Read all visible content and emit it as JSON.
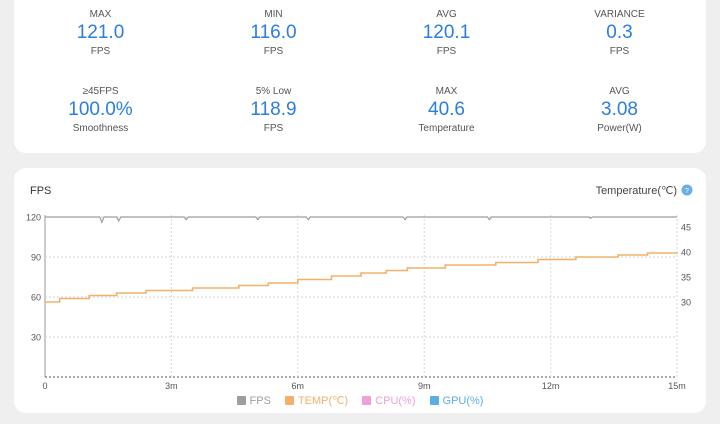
{
  "stats": [
    {
      "label": "MAX",
      "value": "121.0",
      "unit": "FPS"
    },
    {
      "label": "MIN",
      "value": "116.0",
      "unit": "FPS"
    },
    {
      "label": "AVG",
      "value": "120.1",
      "unit": "FPS"
    },
    {
      "label": "VARIANCE",
      "value": "0.3",
      "unit": "FPS"
    },
    {
      "label": "≥45FPS",
      "value": "100.0%",
      "unit": "Smoothness"
    },
    {
      "label": "5% Low",
      "value": "118.9",
      "unit": "FPS"
    },
    {
      "label": "MAX",
      "value": "40.6",
      "unit": "Temperature"
    },
    {
      "label": "AVG",
      "value": "3.08",
      "unit": "Power(W)"
    }
  ],
  "chart": {
    "left_title": "FPS",
    "right_title": "Temperature(℃)",
    "accent": "#2a7de1",
    "colors": {
      "fps": "#9e9e9e",
      "temp": "#f4b06a",
      "cpu": "#f0a0d8",
      "gpu": "#5aaee8"
    },
    "legend": [
      {
        "key": "fps",
        "label": "FPS",
        "color": "#9e9e9e"
      },
      {
        "key": "temp",
        "label": "TEMP(℃)",
        "color": "#f4b06a"
      },
      {
        "key": "cpu",
        "label": "CPU(%)",
        "color": "#f0a0d8"
      },
      {
        "key": "gpu",
        "label": "GPU(%)",
        "color": "#5aaee8"
      }
    ]
  },
  "chart_data": {
    "type": "line",
    "title": "",
    "xlabel": "",
    "ylabel": "FPS",
    "y2label": "Temperature(℃)",
    "x_ticks": [
      {
        "min": 0,
        "label": "0"
      },
      {
        "min": 3,
        "label": "3m"
      },
      {
        "min": 6,
        "label": "6m"
      },
      {
        "min": 9,
        "label": "9m"
      },
      {
        "min": 12,
        "label": "12m"
      },
      {
        "min": 15,
        "label": "15m"
      }
    ],
    "y_ticks": [
      30,
      60,
      90,
      120
    ],
    "y2_ticks": [
      30,
      35,
      40,
      45
    ],
    "xlim": [
      0,
      15
    ],
    "ylim": [
      0,
      120
    ],
    "y2lim": [
      15,
      47
    ],
    "grid": true,
    "legend_position": "bottom",
    "series": [
      {
        "name": "FPS",
        "axis": "left",
        "x": [
          0,
          0.5,
          1.3,
          1.35,
          1.4,
          1.7,
          1.75,
          1.8,
          3.3,
          3.35,
          3.4,
          5.0,
          5.05,
          5.1,
          6.2,
          6.25,
          6.3,
          8.5,
          8.55,
          8.6,
          10.5,
          10.55,
          10.6,
          12.9,
          12.95,
          13.0,
          15
        ],
        "y": [
          120,
          120,
          120,
          116,
          120,
          120,
          117,
          120,
          120,
          118,
          120,
          120,
          118,
          120,
          120,
          118,
          120,
          120,
          118,
          120,
          120,
          118,
          120,
          120,
          119,
          120,
          120
        ]
      },
      {
        "name": "TEMP(℃)",
        "axis": "right",
        "x": [
          0,
          0.35,
          1.05,
          1.7,
          2.4,
          3.5,
          4.6,
          5.3,
          6.0,
          6.8,
          7.5,
          8.1,
          8.6,
          9.5,
          10.7,
          11.7,
          12.6,
          13.6,
          14.3,
          15
        ],
        "y": [
          30.0,
          30.7,
          31.3,
          31.8,
          32.3,
          32.8,
          33.3,
          33.8,
          34.5,
          35.2,
          35.8,
          36.3,
          36.8,
          37.4,
          37.9,
          38.5,
          39.0,
          39.4,
          39.8,
          40.0
        ]
      }
    ]
  }
}
